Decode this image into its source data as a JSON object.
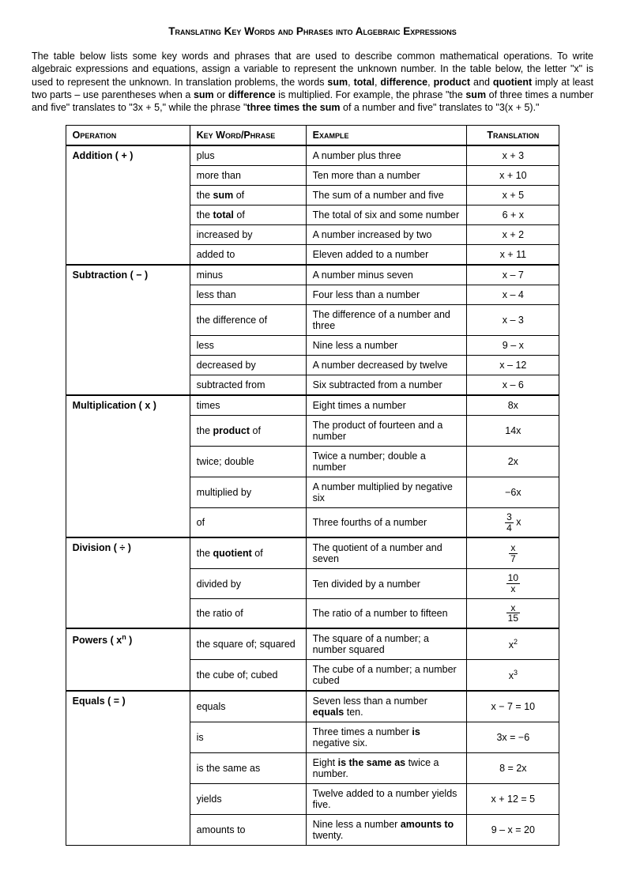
{
  "title": "Translating Key Words and Phrases into Algebraic Expressions",
  "intro_html": "The table below lists some key words and phrases that are used to describe common mathematical operations. To write algebraic expressions and equations, assign a variable to represent the unknown number. In the table below, the letter \"x\" is used to represent the unknown. In translation problems, the words <b>sum</b>, <b>total</b>, <b>difference</b>, <b>product</b> and <b>quotient</b> imply at least two parts – use parentheses when a <b>sum</b> or <b>difference</b> is multiplied. For example, the phrase \"the <b>sum</b> of three times a number and five\" translates to \"3x + 5,\" while the phrase \"<b>three times the sum</b> of a number and five\" translates to \"3(x + 5).\"",
  "headers": {
    "op": "Operation",
    "kw": "Key Word/Phrase",
    "ex": "Example",
    "tr": "Translation"
  },
  "sections": [
    {
      "op": "Addition  ( + )",
      "rows": [
        {
          "kw": "plus",
          "ex": "A number plus three",
          "tr": "x + 3"
        },
        {
          "kw": "more than",
          "ex": "Ten more than a number",
          "tr": "x + 10"
        },
        {
          "kw_html": "the <b>sum</b> of",
          "ex": "The sum of a number and five",
          "tr": "x + 5"
        },
        {
          "kw_html": "the <b>total</b> of",
          "ex": "The total of six and some number",
          "tr": "6 + x"
        },
        {
          "kw": "increased by",
          "ex": "A number increased by two",
          "tr": "x + 2"
        },
        {
          "kw": "added to",
          "ex": "Eleven added to a number",
          "tr": "x + 11"
        }
      ]
    },
    {
      "op": "Subtraction  ( − )",
      "rows": [
        {
          "kw": "minus",
          "ex": "A number minus seven",
          "tr": "x – 7"
        },
        {
          "kw": "less than",
          "ex": "Four less than a number",
          "tr": "x – 4"
        },
        {
          "kw": "the difference of",
          "ex": "The difference of a number and three",
          "tr": "x – 3"
        },
        {
          "kw": "less",
          "ex": "Nine less a number",
          "tr": "9 – x"
        },
        {
          "kw": "decreased by",
          "ex": "A number decreased by twelve",
          "tr": "x – 12"
        },
        {
          "kw": "subtracted from",
          "ex": "Six subtracted from a number",
          "tr": "x – 6"
        }
      ]
    },
    {
      "op": "Multiplication  ( x )",
      "rows": [
        {
          "kw": "times",
          "ex": "Eight times a number",
          "tr": "8x"
        },
        {
          "kw_html": "the <b>product</b> of",
          "ex": "The product of fourteen and a number",
          "tr": "14x"
        },
        {
          "kw": "twice; double",
          "ex": "Twice a number; double a number",
          "tr": "2x"
        },
        {
          "kw": "multiplied by",
          "ex": "A number multiplied by negative six",
          "tr": "−6x"
        },
        {
          "kw": "of",
          "ex": "Three fourths of a number",
          "tr_html": "<span class='frac'><span class='num'>3</span><span class='den'>4</span></span>&nbsp;x"
        }
      ]
    },
    {
      "op": "Division  ( ÷ )",
      "rows": [
        {
          "kw_html": "the <b>quotient</b> of",
          "ex": "The quotient of a number and seven",
          "tr_html": "<span class='frac'><span class='num'>x</span><span class='den'>7</span></span>"
        },
        {
          "kw": "divided by",
          "ex": "Ten divided by a number",
          "tr_html": "<span class='frac'><span class='num'>10</span><span class='den'>x</span></span>"
        },
        {
          "kw": "the ratio of",
          "ex": "The ratio of a number to fifteen",
          "tr_html": "<span class='frac'><span class='num'>x</span><span class='den'>15</span></span>"
        }
      ]
    },
    {
      "op_html": "Powers  ( x<sup>n</sup> )",
      "rows": [
        {
          "kw": "the square of; squared",
          "ex": "The square of a number; a number squared",
          "tr_html": "x<sup>2</sup>"
        },
        {
          "kw": "the cube of; cubed",
          "ex": "The cube of a number; a number cubed",
          "tr_html": "x<sup>3</sup>"
        }
      ]
    },
    {
      "op": "Equals  ( = )",
      "rows": [
        {
          "kw": "equals",
          "ex_html": "Seven less than a number <b>equals</b> ten.",
          "tr": "x − 7 = 10"
        },
        {
          "kw": "is",
          "ex_html": "Three times a number <b>is</b> negative six.",
          "tr": "3x = −6"
        },
        {
          "kw": "is the same as",
          "ex_html": "Eight <b>is the same as</b> twice a number.",
          "tr": "8 = 2x"
        },
        {
          "kw": "yields",
          "ex": "Twelve added to a number yields five.",
          "tr": "x + 12 = 5"
        },
        {
          "kw": "amounts to",
          "ex_html": "Nine less a number <b>amounts to</b> twenty.",
          "tr": "9 – x = 20"
        }
      ]
    }
  ]
}
